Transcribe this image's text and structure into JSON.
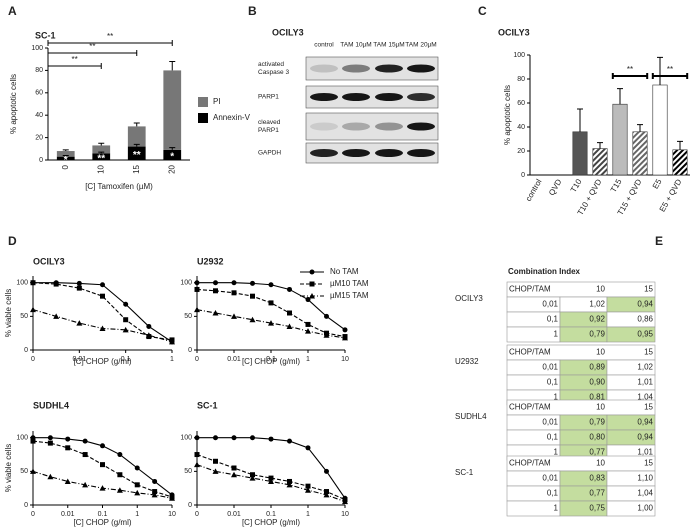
{
  "panels": [
    "A",
    "B",
    "C",
    "D",
    "E"
  ],
  "chart_data": [
    {
      "type": "bar",
      "title": "SC-1",
      "categories": [
        "0",
        "10",
        "15",
        "20"
      ],
      "xlabel": "[C] Tamoxifen (µM)",
      "ylabel": "% apoptotic cells",
      "series": [
        {
          "name": "Annexin-V",
          "color": "#000000",
          "values": [
            3,
            6,
            12,
            9
          ],
          "errors": [
            1,
            1,
            2,
            2
          ]
        },
        {
          "name": "PI",
          "color": "#777777",
          "values": [
            5,
            7,
            18,
            71
          ],
          "errors": [
            1,
            2,
            3,
            8
          ]
        }
      ],
      "bar_labels": [
        "*",
        "**",
        "**",
        "*"
      ],
      "significance": [
        "**",
        "**",
        "**"
      ],
      "ylim": [
        0,
        100
      ],
      "yticks": [
        0,
        20,
        40,
        60,
        80,
        100
      ]
    },
    {
      "type": "bar",
      "title": "OCILY3",
      "categories": [
        "control",
        "QVD",
        "T10",
        "T10 + QVD",
        "T15",
        "T15 + QVD",
        "E5",
        "E5 + QVD"
      ],
      "ylabel": "% apoptotic cells",
      "values": [
        0,
        0,
        36,
        22,
        59,
        36,
        75,
        21
      ],
      "errors": [
        null,
        null,
        19,
        5,
        13,
        6,
        23,
        7
      ],
      "colors": [
        "#555555",
        "#555555",
        "#555555",
        "#444444",
        "#bbbbbb",
        "#666666",
        "#ffffff",
        "#000000"
      ],
      "patterns": [
        "solid",
        "solid",
        "solid",
        "hatch",
        "solid",
        "hatch",
        "solid",
        "hatch"
      ],
      "significance": [
        "**",
        "**"
      ],
      "ylim": [
        0,
        100
      ],
      "yticks": [
        0,
        20,
        40,
        60,
        80,
        100
      ]
    },
    {
      "type": "line",
      "title": "OCILY3",
      "xlabel": "[C] CHOP (g/ml)",
      "ylabel": "% viable cells",
      "categories": [
        "0",
        null,
        "0.01",
        null,
        "0.1",
        null,
        "1"
      ],
      "series": [
        {
          "color": "#000000",
          "dash": "solid",
          "marker": "circle",
          "values": [
            100,
            100,
            99,
            97,
            68,
            35,
            12
          ]
        },
        {
          "color": "#000000",
          "dash": "dashed",
          "marker": "square",
          "values": [
            100,
            98,
            92,
            80,
            45,
            20,
            15
          ]
        },
        {
          "color": "#000000",
          "dash": "dashdot",
          "marker": "triangle",
          "values": [
            60,
            50,
            40,
            32,
            30,
            22,
            12
          ]
        }
      ],
      "ylim": [
        0,
        110
      ],
      "yticks": [
        0,
        50,
        100
      ]
    },
    {
      "type": "line",
      "title": "U2932",
      "xlabel": "[C] CHOP (g/ml)",
      "legend": "outside right",
      "categories": [
        "0",
        null,
        "0.01",
        null,
        "0.1",
        null,
        "1",
        null,
        "10"
      ],
      "series": [
        {
          "name": "No TAM",
          "color": "#000000",
          "dash": "solid",
          "marker": "circle",
          "values": [
            100,
            100,
            100,
            99,
            97,
            90,
            75,
            50,
            30
          ]
        },
        {
          "name": "µM10 TAM",
          "color": "#000000",
          "dash": "dashed",
          "marker": "square",
          "values": [
            90,
            88,
            85,
            80,
            70,
            55,
            38,
            25,
            20
          ]
        },
        {
          "name": "µM15 TAM",
          "color": "#000000",
          "dash": "dashdot",
          "marker": "triangle",
          "values": [
            60,
            55,
            50,
            45,
            40,
            35,
            28,
            22,
            18
          ]
        }
      ],
      "ylim": [
        0,
        110
      ],
      "yticks": [
        0,
        50,
        100
      ]
    },
    {
      "type": "line",
      "title": "SUDHL4",
      "xlabel": "[C] CHOP (g/ml)",
      "ylabel": "% viable cells",
      "categories": [
        "0",
        null,
        "0.01",
        null,
        "0.1",
        null,
        "1",
        null,
        "10"
      ],
      "series": [
        {
          "color": "#000000",
          "dash": "solid",
          "marker": "circle",
          "values": [
            100,
            100,
            98,
            95,
            88,
            75,
            55,
            35,
            15
          ]
        },
        {
          "color": "#000000",
          "dash": "dashed",
          "marker": "square",
          "values": [
            95,
            92,
            85,
            75,
            60,
            45,
            30,
            20,
            12
          ]
        },
        {
          "color": "#000000",
          "dash": "dashdot",
          "marker": "triangle",
          "values": [
            50,
            42,
            35,
            30,
            25,
            22,
            18,
            15,
            10
          ]
        }
      ],
      "ylim": [
        0,
        110
      ],
      "yticks": [
        0,
        50,
        100
      ]
    },
    {
      "type": "line",
      "title": "SC-1",
      "xlabel": "[C] CHOP (g/ml)",
      "categories": [
        "0",
        null,
        "0.01",
        null,
        "0.1",
        null,
        "1",
        null,
        "10"
      ],
      "series": [
        {
          "color": "#000000",
          "dash": "solid",
          "marker": "circle",
          "values": [
            100,
            100,
            100,
            100,
            98,
            95,
            85,
            50,
            10
          ]
        },
        {
          "color": "#000000",
          "dash": "dashed",
          "marker": "square",
          "values": [
            75,
            65,
            55,
            45,
            40,
            35,
            28,
            20,
            8
          ]
        },
        {
          "color": "#000000",
          "dash": "dashdot",
          "marker": "triangle",
          "values": [
            60,
            50,
            45,
            40,
            35,
            30,
            22,
            15,
            5
          ]
        }
      ],
      "ylim": [
        0,
        110
      ],
      "yticks": [
        0,
        50,
        100
      ]
    }
  ],
  "blot": {
    "title": "OCILY3",
    "columns": [
      "control",
      "TAM 10µM",
      "TAM 15µM",
      "TAM 20µM"
    ],
    "rows": [
      {
        "label": [
          "activated",
          "Caspase 3"
        ]
      },
      {
        "label": [
          "PARP1"
        ]
      },
      {
        "label": [
          "cleaved",
          "PARP1"
        ]
      },
      {
        "label": [
          "GAPDH"
        ]
      }
    ]
  },
  "combination_index": {
    "title": "Combination Index",
    "tables": [
      {
        "name": "OCILY3",
        "header": [
          "CHOP/TAM",
          "10",
          "15"
        ],
        "rows": [
          {
            "label": "0,01",
            "cells": [
              "1,02",
              "0,94"
            ],
            "highlight": [
              false,
              true
            ]
          },
          {
            "label": "0,1",
            "cells": [
              "0,92",
              "0,86"
            ],
            "highlight": [
              true,
              false
            ]
          },
          {
            "label": "1",
            "cells": [
              "0,79",
              "0,95"
            ],
            "highlight": [
              true,
              true
            ]
          }
        ]
      },
      {
        "name": "U2932",
        "header": [
          "CHOP/TAM",
          "10",
          "15"
        ],
        "rows": [
          {
            "label": "0,01",
            "cells": [
              "0,89",
              "1,02"
            ],
            "highlight": [
              true,
              false
            ]
          },
          {
            "label": "0,1",
            "cells": [
              "0,90",
              "1,01"
            ],
            "highlight": [
              true,
              false
            ]
          },
          {
            "label": "1",
            "cells": [
              "0,81",
              "1,04"
            ],
            "highlight": [
              true,
              false
            ]
          }
        ]
      },
      {
        "name": "SUDHL4",
        "header": [
          "CHOP/TAM",
          "10",
          "15"
        ],
        "rows": [
          {
            "label": "0,01",
            "cells": [
              "0,79",
              "0,94"
            ],
            "highlight": [
              true,
              true
            ]
          },
          {
            "label": "0,1",
            "cells": [
              "0,80",
              "0,94"
            ],
            "highlight": [
              true,
              true
            ]
          },
          {
            "label": "1",
            "cells": [
              "0,77",
              "1,01"
            ],
            "highlight": [
              true,
              false
            ]
          }
        ]
      },
      {
        "name": "SC-1",
        "header": [
          "CHOP/TAM",
          "10",
          "15"
        ],
        "rows": [
          {
            "label": "0,01",
            "cells": [
              "0,83",
              "1,10"
            ],
            "highlight": [
              true,
              false
            ]
          },
          {
            "label": "0,1",
            "cells": [
              "0,77",
              "1,04"
            ],
            "highlight": [
              true,
              false
            ]
          },
          {
            "label": "1",
            "cells": [
              "0,75",
              "1,00"
            ],
            "highlight": [
              true,
              false
            ]
          }
        ]
      }
    ]
  }
}
